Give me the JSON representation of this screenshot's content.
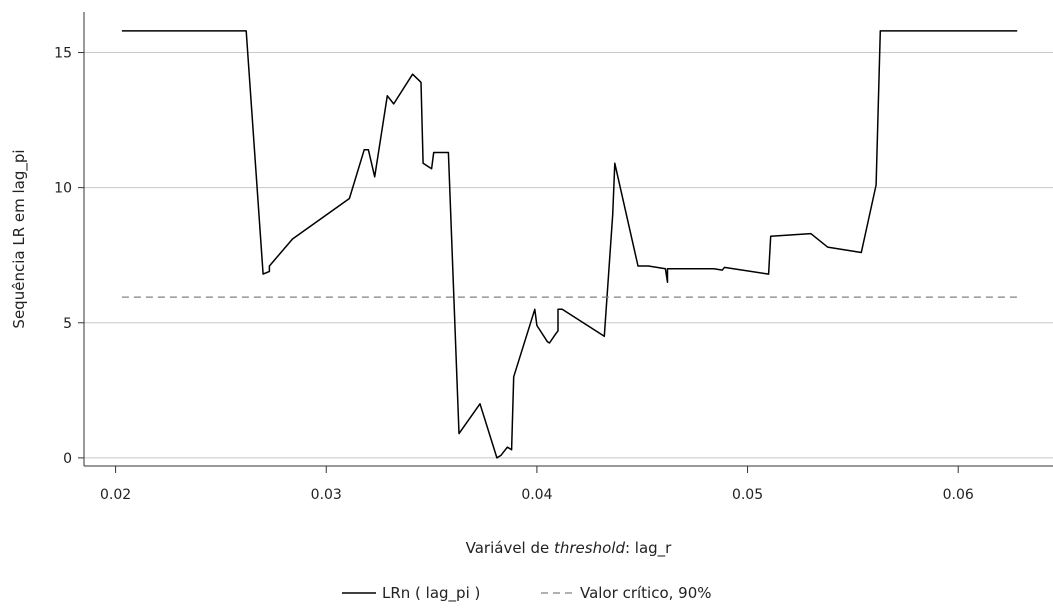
{
  "chart_data": {
    "type": "line",
    "title": "",
    "xlabel_prefix": "Variável de ",
    "xlabel_italic": "threshold",
    "xlabel_suffix": ": lag_r",
    "ylabel": "Sequência LR em lag_pi",
    "xlim": [
      0.0185,
      0.0645
    ],
    "ylim": [
      -0.3,
      16.5
    ],
    "x_ticks": [
      0.02,
      0.03,
      0.04,
      0.05,
      0.06
    ],
    "x_tick_labels": [
      "0.02",
      "0.03",
      "0.04",
      "0.05",
      "0.06"
    ],
    "y_ticks": [
      0,
      5,
      10,
      15
    ],
    "y_tick_labels": [
      "0",
      "5",
      "10",
      "15"
    ],
    "grid": "horizontal",
    "legend_position": "bottom",
    "series": [
      {
        "name": "LRn ( lag_pi )",
        "style": "solid",
        "color": "#000000",
        "x": [
          0.0203,
          0.0262,
          0.027,
          0.0273,
          0.0273,
          0.0284,
          0.0311,
          0.0318,
          0.032,
          0.0323,
          0.0329,
          0.0332,
          0.0341,
          0.0345,
          0.0346,
          0.035,
          0.0351,
          0.0357,
          0.0358,
          0.0363,
          0.0373,
          0.0381,
          0.0383,
          0.0386,
          0.0388,
          0.0389,
          0.0399,
          0.04,
          0.0405,
          0.0406,
          0.0409,
          0.041,
          0.041,
          0.0412,
          0.0432,
          0.0436,
          0.0437,
          0.0448,
          0.0453,
          0.0461,
          0.0462,
          0.0462,
          0.0464,
          0.0475,
          0.0484,
          0.0488,
          0.0489,
          0.051,
          0.0511,
          0.053,
          0.0538,
          0.0554,
          0.0561,
          0.0563,
          0.0628
        ],
        "y": [
          15.8,
          15.8,
          6.8,
          6.9,
          7.1,
          8.1,
          9.6,
          11.4,
          11.4,
          10.4,
          13.4,
          13.1,
          14.2,
          13.9,
          10.9,
          10.7,
          11.3,
          11.3,
          11.3,
          0.9,
          2.0,
          0.0,
          0.1,
          0.4,
          0.3,
          3.0,
          5.5,
          4.9,
          4.3,
          4.25,
          4.6,
          4.7,
          5.5,
          5.5,
          4.5,
          9.0,
          10.9,
          7.1,
          7.1,
          7.0,
          6.5,
          7.0,
          7.0,
          7.0,
          7.0,
          6.95,
          7.05,
          6.8,
          8.2,
          8.3,
          7.8,
          7.6,
          10.1,
          15.8,
          15.8
        ]
      },
      {
        "name": "Valor crítico, 90%",
        "style": "dashed",
        "color": "#808080",
        "x": [
          0.0203,
          0.0628
        ],
        "y": [
          5.95,
          5.95
        ]
      }
    ]
  }
}
